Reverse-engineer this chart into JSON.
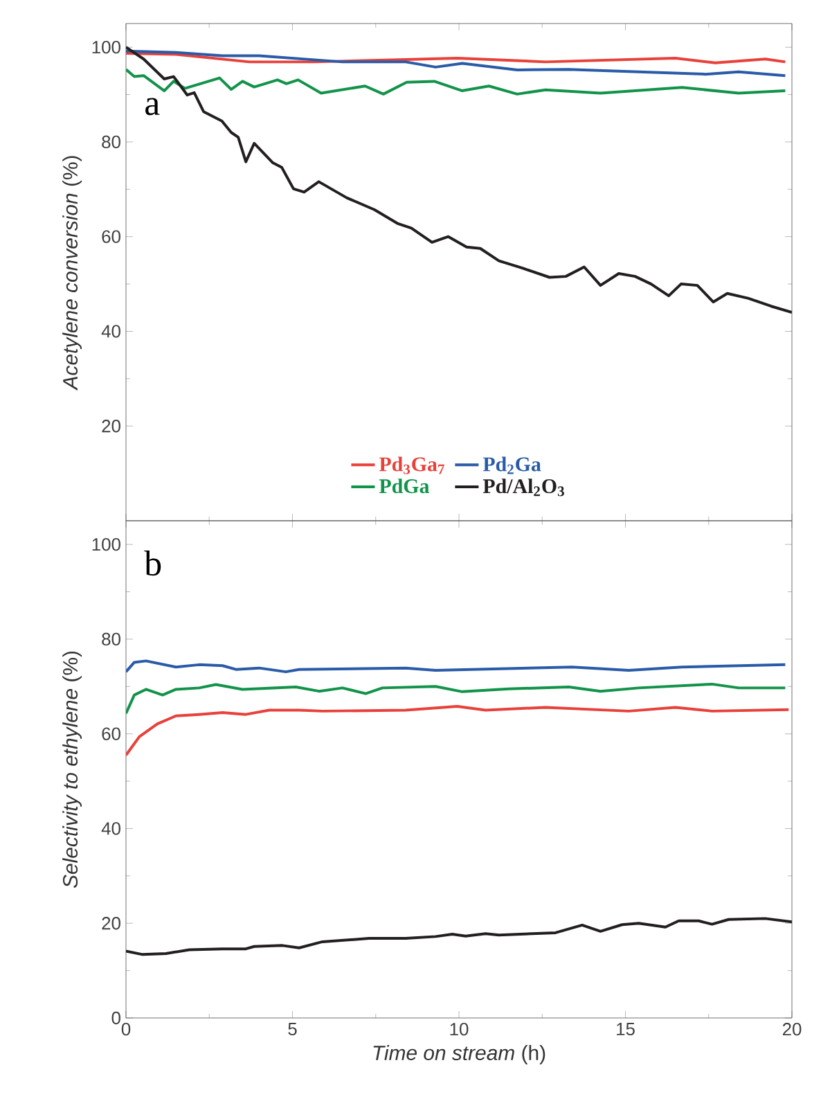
{
  "chart_data": [
    {
      "type": "line",
      "ylabel": "*Acetylene conversion* (%)",
      "annotations": [
        "a"
      ],
      "xlim": [
        0,
        20
      ],
      "xticks": [
        0,
        5,
        10,
        15,
        20
      ],
      "ylim": [
        0,
        105
      ],
      "yticks": [
        20,
        40,
        60,
        80,
        100
      ],
      "tick_labels": "y",
      "legend": "bottom",
      "series": [
        {
          "name": "Pd$_{3}$Ga$_{7}$",
          "color": "#e8413a",
          "x": [
            0,
            1.5,
            3.7,
            5.65,
            9.95,
            12.6,
            16.5,
            17.7,
            19.2,
            19.8
          ],
          "values": [
            98.7,
            98.5,
            96.9,
            96.9,
            97.7,
            96.9,
            97.7,
            96.7,
            97.5,
            96.9
          ]
        },
        {
          "name": "Pd$_{2}$Ga",
          "color": "#2a5ba8",
          "x": [
            0,
            1.5,
            2.9,
            4,
            6.5,
            8.4,
            9.3,
            10.1,
            11.75,
            13.3,
            15.4,
            17.4,
            18.4,
            19.8
          ],
          "values": [
            99.2,
            98.9,
            98.2,
            98.2,
            96.9,
            96.9,
            95.8,
            96.6,
            95.2,
            95.3,
            94.8,
            94.3,
            94.8,
            94
          ]
        },
        {
          "name": "PdGa",
          "color": "#12934a",
          "x": [
            0,
            0.25,
            0.53,
            1.15,
            1.43,
            1.77,
            2.81,
            3.16,
            3.5,
            3.85,
            4.55,
            4.82,
            5.17,
            5.86,
            7.18,
            7.73,
            8.43,
            9.26,
            10.1,
            10.9,
            11.75,
            12.6,
            14.25,
            16.7,
            18.4,
            19.8
          ],
          "values": [
            95.3,
            93.8,
            94,
            90.8,
            92.8,
            91.3,
            93.5,
            91.1,
            92.8,
            91.6,
            93.1,
            92.3,
            93.1,
            90.3,
            91.8,
            90.1,
            92.6,
            92.8,
            90.8,
            91.8,
            90.1,
            91,
            90.3,
            91.5,
            90.3,
            90.8
          ]
        },
        {
          "name": "Pd/Al$_{2}$O$_{3}$",
          "color": "#231f20",
          "x": [
            0,
            0.53,
            1.15,
            1.43,
            1.84,
            2.05,
            2.33,
            2.88,
            3.16,
            3.37,
            3.6,
            3.85,
            4.41,
            4.68,
            5.03,
            5.35,
            5.79,
            6.63,
            7.46,
            8.15,
            8.57,
            9.19,
            9.68,
            10.23,
            10.64,
            11.2,
            11.89,
            12.72,
            13.21,
            13.76,
            14.25,
            14.8,
            15.29,
            15.77,
            16.3,
            16.67,
            17.16,
            17.64,
            18.06,
            18.68,
            19.38,
            20
          ],
          "values": [
            100,
            97.5,
            93.3,
            93.8,
            89.9,
            90.4,
            86.4,
            84.4,
            82,
            81,
            75.8,
            79.7,
            75.6,
            74.6,
            70.1,
            69.4,
            71.6,
            68.2,
            65.7,
            62.8,
            61.8,
            58.8,
            60,
            57.8,
            57.5,
            54.9,
            53.4,
            51.4,
            51.6,
            53.6,
            49.7,
            52.2,
            51.6,
            50,
            47.5,
            50,
            49.7,
            46.2,
            48,
            47,
            45.3,
            44
          ]
        }
      ]
    },
    {
      "type": "line",
      "ylabel": "*Selectivity to ethylene* (%)",
      "xlabel": "*Time on stream* (h)",
      "annotations": [
        "b"
      ],
      "xlim": [
        0,
        20
      ],
      "xticks": [
        0,
        5,
        10,
        15,
        20
      ],
      "ylim": [
        0,
        105
      ],
      "yticks": [
        0,
        20,
        40,
        60,
        80,
        100
      ],
      "series": [
        {
          "color": "#e8413a",
          "x": [
            0,
            0.4,
            0.94,
            1.5,
            2.2,
            2.9,
            3.6,
            4.3,
            5.2,
            5.9,
            8.4,
            9.95,
            10.8,
            12.6,
            15.1,
            16.5,
            17.6,
            19.9
          ],
          "values": [
            55.5,
            59.4,
            62.1,
            63.8,
            64.1,
            64.5,
            64.1,
            65,
            65,
            64.8,
            65,
            65.8,
            65,
            65.6,
            64.8,
            65.6,
            64.8,
            65.1
          ]
        },
        {
          "color": "#2a5ba8",
          "x": [
            0,
            0.25,
            0.6,
            1.5,
            2.2,
            2.9,
            3.3,
            4,
            4.8,
            5.2,
            8.4,
            9.3,
            13.4,
            15.1,
            16.7,
            19.8
          ],
          "values": [
            73.1,
            75.1,
            75.4,
            74.1,
            74.6,
            74.4,
            73.6,
            73.9,
            73.1,
            73.6,
            73.9,
            73.4,
            74.1,
            73.4,
            74.1,
            74.6
          ]
        },
        {
          "color": "#12934a",
          "x": [
            0,
            0.25,
            0.6,
            1.1,
            1.5,
            2.2,
            2.7,
            3.5,
            5.1,
            5.8,
            6.5,
            7.2,
            7.7,
            9.3,
            10.1,
            11.5,
            13.3,
            14.25,
            15.4,
            17.6,
            18.4,
            19.8
          ],
          "values": [
            64.3,
            68.2,
            69.4,
            68.2,
            69.4,
            69.7,
            70.4,
            69.4,
            69.9,
            69,
            69.7,
            68.5,
            69.7,
            70,
            68.9,
            69.5,
            69.9,
            69,
            69.7,
            70.5,
            69.7,
            69.7
          ]
        },
        {
          "color": "#231f20",
          "x": [
            0,
            0.5,
            1.2,
            1.9,
            2.9,
            3.6,
            3.85,
            4.7,
            5.2,
            5.9,
            7.3,
            8.4,
            9.3,
            9.8,
            10.2,
            10.8,
            11.2,
            12.9,
            13.7,
            14.25,
            14.9,
            15.4,
            16.2,
            16.6,
            17.2,
            17.6,
            18.1,
            19.2,
            20
          ],
          "values": [
            14.1,
            13.4,
            13.6,
            14.4,
            14.6,
            14.6,
            15.1,
            15.3,
            14.8,
            16.1,
            16.8,
            16.8,
            17.2,
            17.7,
            17.3,
            17.8,
            17.5,
            18,
            19.6,
            18.3,
            19.7,
            20,
            19.2,
            20.5,
            20.5,
            19.8,
            20.8,
            21,
            20.3
          ]
        }
      ]
    }
  ]
}
